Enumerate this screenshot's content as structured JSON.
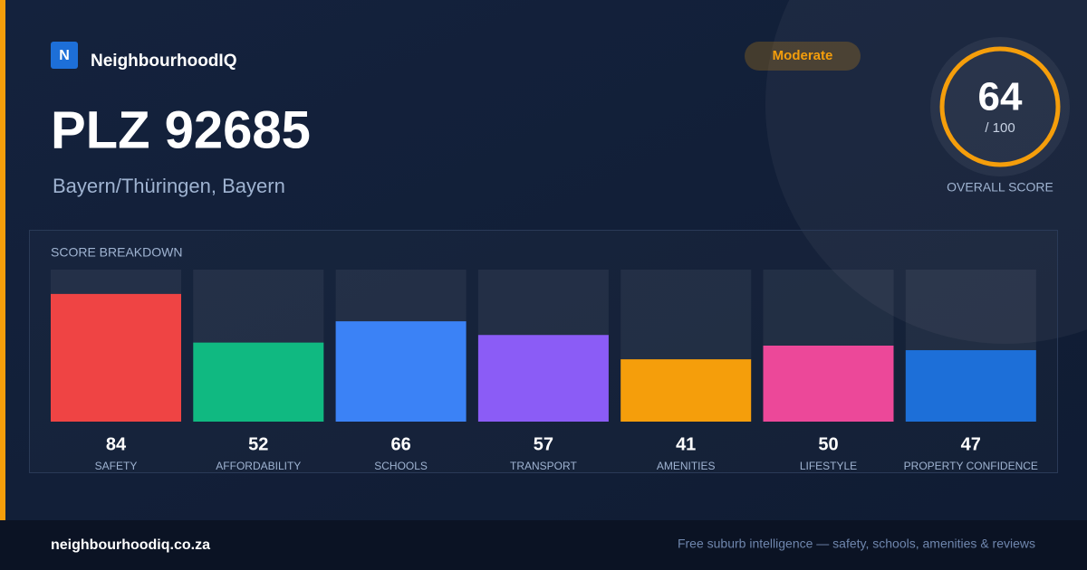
{
  "brand": {
    "logo": "N",
    "name": "NeighbourhoodIQ"
  },
  "title": "PLZ 92685",
  "subtitle": "Bayern/Thüringen, Bayern",
  "badge": "Moderate",
  "score": {
    "value": 64,
    "max_label": "/ 100",
    "label": "OVERALL SCORE"
  },
  "chart_data": {
    "type": "bar",
    "title": "SCORE BREAKDOWN",
    "categories": [
      "SAFETY",
      "AFFORDABILITY",
      "SCHOOLS",
      "TRANSPORT",
      "AMENITIES",
      "LIFESTYLE",
      "PROPERTY CONFIDENCE"
    ],
    "values": [
      84,
      52,
      66,
      57,
      41,
      50,
      47
    ],
    "colors": [
      "#ef4444",
      "#10b981",
      "#3b82f6",
      "#8b5cf6",
      "#f59e0b",
      "#ec4899",
      "#1d6fd8"
    ],
    "ylim": [
      0,
      100
    ]
  },
  "footer": {
    "url": "neighbourhoodiq.co.za",
    "tagline": "Free suburb intelligence — safety, schools, amenities & reviews"
  }
}
